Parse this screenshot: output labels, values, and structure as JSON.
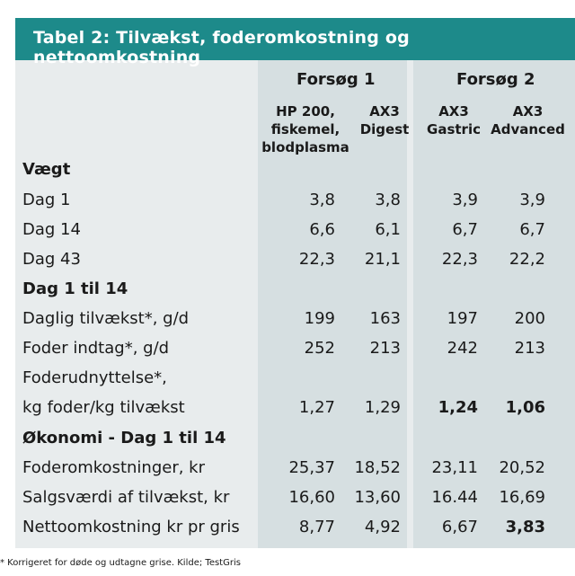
{
  "title": "Tabel 2: Tilvækst, foderomkostning og nettoomkostning",
  "groups": {
    "forsog1": "Forsøg 1",
    "forsog2": "Forsøg 2"
  },
  "columns": [
    [
      "HP 200,",
      "fiskemel,",
      "blodplasma"
    ],
    [
      "AX3",
      "Digest"
    ],
    [
      "AX3",
      "Gastric"
    ],
    [
      "AX3",
      "Advanced"
    ]
  ],
  "sections": {
    "vaegt": "Vægt",
    "dag1til14": "Dag 1 til 14",
    "okonomi": "Økonomi - Dag 1 til 14"
  },
  "rows": [
    {
      "label": "Dag 1",
      "values": [
        "3,8",
        "3,8",
        "3,9",
        "3,9"
      ]
    },
    {
      "label": "Dag 14",
      "values": [
        "6,6",
        "6,1",
        "6,7",
        "6,7"
      ]
    },
    {
      "label": "Dag 43",
      "values": [
        "22,3",
        "21,1",
        "22,3",
        "22,2"
      ]
    },
    {
      "label": "Daglig tilvækst*, g/d",
      "values": [
        "199",
        "163",
        "197",
        "200"
      ]
    },
    {
      "label": "Foder indtag*, g/d",
      "values": [
        "252",
        "213",
        "242",
        "213"
      ]
    },
    {
      "label": "Foderudnyttelse*,",
      "values": []
    },
    {
      "label": "kg foder/kg tilvækst",
      "values": [
        "1,27",
        "1,29",
        "1,24",
        "1,06"
      ]
    },
    {
      "label": "Foderomkostninger, kr",
      "values": [
        "25,37",
        "18,52",
        "23,11",
        "20,52"
      ]
    },
    {
      "label": "Salgsværdi af tilvækst, kr",
      "values": [
        "16,60",
        "13,60",
        "16.44",
        "16,69"
      ]
    },
    {
      "label": "Nettoomkostning kr pr gris",
      "values": [
        "8,77",
        "4,92",
        "6,67",
        "3,83"
      ]
    }
  ],
  "footnote": "* Korrigeret for døde og udtagne grise. Kilde; TestGris"
}
